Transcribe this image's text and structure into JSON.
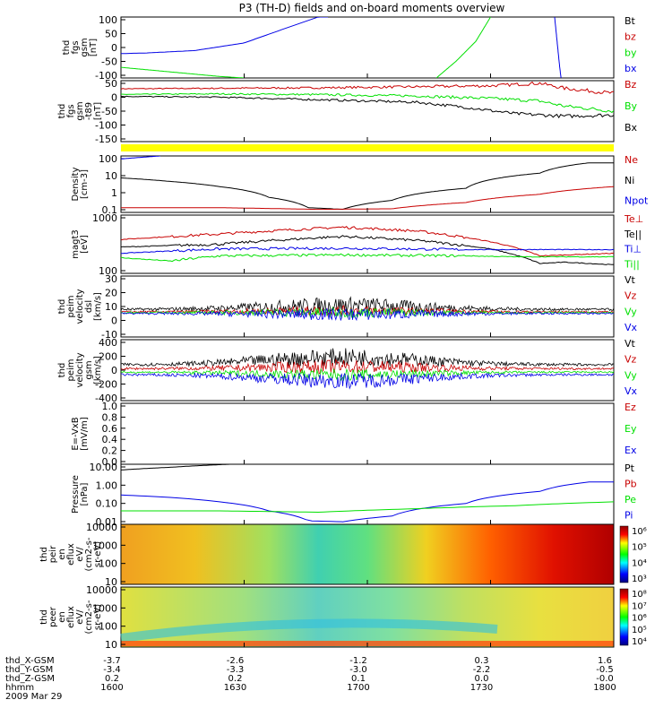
{
  "title": "P3 (TH-D) fields and on-board moments overview",
  "colors": {
    "black": "#000000",
    "red": "#c80000",
    "green": "#00e000",
    "blue": "#0000e6",
    "yellow": "#ffff00"
  },
  "chart_data": [
    {
      "type": "line",
      "panel": "fgs",
      "ylabel": [
        "thd",
        "fgs",
        "gsm",
        "[nT]"
      ],
      "yticks": [
        "100",
        "50",
        "0",
        "-50",
        "-100"
      ],
      "ylim": [
        -100,
        100
      ],
      "legend": [
        {
          "label": "Bt",
          "color": "black"
        },
        {
          "label": "bz",
          "color": "red"
        },
        {
          "label": "by",
          "color": "green"
        },
        {
          "label": "bx",
          "color": "blue"
        }
      ],
      "series": [
        {
          "name": "bx",
          "color": "blue",
          "x": [
            0,
            0.05,
            0.15,
            0.25,
            0.32,
            0.4,
            0.42
          ],
          "y": [
            -20,
            -18,
            -10,
            15,
            55,
            100,
            100
          ]
        },
        {
          "name": "by",
          "color": "green",
          "x": [
            0,
            0.1,
            0.2,
            0.25
          ],
          "y": [
            -65,
            -80,
            -95,
            -100
          ]
        },
        {
          "name": "by",
          "color": "green",
          "x": [
            0.64,
            0.68,
            0.72,
            0.75
          ],
          "y": [
            -100,
            -45,
            20,
            100
          ]
        },
        {
          "name": "bx",
          "color": "blue",
          "x": [
            0.88,
            0.885,
            0.89,
            0.893
          ],
          "y": [
            100,
            20,
            -60,
            -100
          ]
        }
      ]
    },
    {
      "type": "line",
      "panel": "fgs-dsl",
      "ylabel": [
        "thd",
        "fgs",
        "gsm",
        "-t89",
        "[nT]"
      ],
      "yticks": [
        "50",
        "0",
        "-50",
        "-100",
        "-150"
      ],
      "ylim": [
        -180,
        60
      ],
      "legend": [
        {
          "label": "Bz",
          "color": "red"
        },
        {
          "label": "By",
          "color": "green"
        },
        {
          "label": "Bx",
          "color": "black"
        }
      ],
      "series": [
        {
          "name": "Bz",
          "color": "red",
          "x": [
            0,
            0.2,
            0.4,
            0.6,
            0.75,
            0.85,
            0.9,
            1
          ],
          "y": [
            28,
            30,
            32,
            36,
            40,
            50,
            30,
            10
          ]
        },
        {
          "name": "By",
          "color": "green",
          "x": [
            0,
            0.2,
            0.4,
            0.6,
            0.75,
            0.85,
            0.9,
            1
          ],
          "y": [
            6,
            8,
            5,
            0,
            -10,
            -20,
            -40,
            -60
          ]
        },
        {
          "name": "Bx",
          "color": "black",
          "x": [
            0,
            0.2,
            0.4,
            0.6,
            0.7,
            0.8,
            0.9,
            1
          ],
          "y": [
            -2,
            -5,
            -15,
            -25,
            -45,
            -70,
            -80,
            -75
          ]
        }
      ]
    },
    {
      "type": "line",
      "panel": "density",
      "ylabel": [
        "Density",
        "[cm-3]"
      ],
      "yticks": [
        "100",
        "10",
        "1",
        "0.1"
      ],
      "ylim": [
        0.08,
        150
      ],
      "legend": [
        {
          "label": "Ne",
          "color": "red"
        },
        {
          "label": "Ni",
          "color": "black"
        },
        {
          "label": "Npot",
          "color": "blue"
        }
      ],
      "series": [
        {
          "name": "Ni",
          "color": "black",
          "x": [
            0,
            0.1,
            0.2,
            0.3,
            0.38,
            0.45,
            0.55,
            0.7,
            0.85,
            0.95,
            1
          ],
          "y": [
            8,
            5,
            2.5,
            0.6,
            0.15,
            0.12,
            0.4,
            2,
            15,
            60,
            60
          ]
        },
        {
          "name": "Ne",
          "color": "red",
          "x": [
            0,
            0.2,
            0.4,
            0.55,
            0.7,
            0.85,
            1
          ],
          "y": [
            0.15,
            0.15,
            0.12,
            0.13,
            0.3,
            0.9,
            2.5
          ]
        },
        {
          "name": "Npot",
          "color": "blue",
          "x": [
            0,
            0.05,
            0.08
          ],
          "y": [
            100,
            130,
            150
          ]
        }
      ]
    },
    {
      "type": "line",
      "panel": "temperature",
      "ylabel": [
        "magt3",
        "[eV]"
      ],
      "yticks": [
        "1000",
        "100"
      ],
      "ylim": [
        100,
        1600
      ],
      "legend": [
        {
          "label": "Te⊥",
          "color": "red"
        },
        {
          "label": "Te||",
          "color": "black"
        },
        {
          "label": "Ti⊥",
          "color": "blue"
        },
        {
          "label": "Ti||",
          "color": "green"
        }
      ],
      "series": [
        {
          "name": "Te⊥",
          "color": "red",
          "x": [
            0,
            0.2,
            0.45,
            0.6,
            0.75,
            0.85,
            1
          ],
          "y": [
            500,
            650,
            900,
            750,
            450,
            230,
            260
          ]
        },
        {
          "name": "Te||",
          "color": "black",
          "x": [
            0,
            0.2,
            0.45,
            0.6,
            0.75,
            0.85,
            0.9,
            1
          ],
          "y": [
            350,
            400,
            580,
            480,
            320,
            160,
            170,
            150
          ]
        },
        {
          "name": "Ti⊥",
          "color": "blue",
          "x": [
            0,
            0.2,
            0.45,
            0.7,
            1
          ],
          "y": [
            260,
            320,
            330,
            310,
            310
          ]
        },
        {
          "name": "Ti||",
          "color": "green",
          "x": [
            0,
            0.1,
            0.2,
            0.45,
            0.7,
            0.8,
            1
          ],
          "y": [
            210,
            180,
            230,
            240,
            230,
            220,
            220
          ]
        }
      ]
    },
    {
      "type": "line",
      "panel": "velocity-esa",
      "ylabel": [
        "thd",
        "peim",
        "velocity",
        "dsl",
        "[km/s]"
      ],
      "yticks": [
        "30",
        "20",
        "10",
        "0",
        "-10"
      ],
      "ylim": [
        -20,
        30
      ],
      "legend": [
        {
          "label": "Vt",
          "color": "black"
        },
        {
          "label": "Vz",
          "color": "red"
        },
        {
          "label": "Vy",
          "color": "green"
        },
        {
          "label": "Vx",
          "color": "blue"
        }
      ]
    },
    {
      "type": "line",
      "panel": "velocity-gsm",
      "ylabel": [
        "thd",
        "peim",
        "velocity",
        "gsm",
        "[km/s]"
      ],
      "yticks": [
        "400",
        "200",
        "0",
        "-200",
        "-400"
      ],
      "ylim": [
        -400,
        400
      ],
      "legend": [
        {
          "label": "Vt",
          "color": "black"
        },
        {
          "label": "Vz",
          "color": "red"
        },
        {
          "label": "Vy",
          "color": "green"
        },
        {
          "label": "Vx",
          "color": "blue"
        }
      ]
    },
    {
      "type": "line",
      "panel": "efield",
      "ylabel": [
        "E=-VxB",
        "[mV/m]"
      ],
      "yticks": [
        "1.0",
        "0.8",
        "0.6",
        "0.4",
        "0.2",
        "0.0"
      ],
      "ylim": [
        0,
        1
      ],
      "legend": [
        {
          "label": "Ez",
          "color": "red"
        },
        {
          "label": "Ey",
          "color": "green"
        },
        {
          "label": "Ex",
          "color": "blue"
        }
      ]
    },
    {
      "type": "line",
      "panel": "pressure",
      "ylabel": [
        "Pressure",
        "[nPa]"
      ],
      "yticks": [
        "10.00",
        "1.00",
        "0.10",
        "0.01"
      ],
      "ylim": [
        0.005,
        15
      ],
      "legend": [
        {
          "label": "Pt",
          "color": "black"
        },
        {
          "label": "Pb",
          "color": "red"
        },
        {
          "label": "Pe",
          "color": "green"
        },
        {
          "label": "Pi",
          "color": "blue"
        }
      ],
      "series": [
        {
          "name": "Pt",
          "color": "black",
          "x": [
            0,
            0.1,
            0.22
          ],
          "y": [
            7,
            10,
            15
          ]
        },
        {
          "name": "Pi",
          "color": "blue",
          "x": [
            0,
            0.1,
            0.2,
            0.3,
            0.38,
            0.45,
            0.55,
            0.7,
            0.85,
            0.95,
            1
          ],
          "y": [
            0.25,
            0.18,
            0.1,
            0.03,
            0.008,
            0.007,
            0.015,
            0.08,
            0.4,
            1.4,
            1.4
          ]
        },
        {
          "name": "Pe",
          "color": "green",
          "x": [
            0,
            0.2,
            0.4,
            0.6,
            0.8,
            1
          ],
          "y": [
            0.03,
            0.03,
            0.025,
            0.04,
            0.06,
            0.1
          ]
        }
      ]
    },
    {
      "type": "heatmap",
      "panel": "peir",
      "ylabel": [
        "thd",
        "peir",
        "en",
        "eflux",
        "eV/",
        "(cm2-s-",
        "sr-eV)"
      ],
      "yticks": [
        "10000",
        "1000",
        "100",
        "10"
      ],
      "colorbar": [
        "10⁶",
        "10⁵",
        "10⁴",
        "10³"
      ]
    },
    {
      "type": "heatmap",
      "panel": "peer",
      "ylabel": [
        "thd",
        "peer",
        "en",
        "eflux",
        "eV/",
        "(cm2-s-",
        "sr-eV)"
      ],
      "yticks": [
        "10000",
        "1000",
        "100",
        "10"
      ],
      "colorbar": [
        "10⁸",
        "10⁷",
        "10⁶",
        "10⁵",
        "10⁴"
      ]
    }
  ],
  "ephemeris": {
    "rows": [
      {
        "label": "thd_X-GSM",
        "values": [
          "-3.7",
          "-2.6",
          "-1.2",
          "0.3",
          "1.6"
        ]
      },
      {
        "label": "thd_Y-GSM",
        "values": [
          "-3.4",
          "-3.3",
          "-3.0",
          "-2.2",
          "-0.5"
        ]
      },
      {
        "label": "thd_Z-GSM",
        "values": [
          "0.2",
          "0.2",
          "0.1",
          "0.0",
          "-0.0"
        ]
      },
      {
        "label": "hhmm",
        "values": [
          "1600",
          "1630",
          "1700",
          "1730",
          "1800"
        ]
      }
    ],
    "date": "2009 Mar 29"
  }
}
